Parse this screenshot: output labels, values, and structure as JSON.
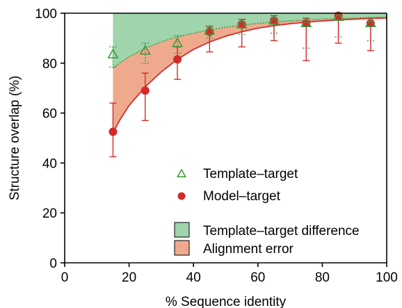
{
  "chart_data": {
    "type": "scatter",
    "title": "",
    "xlabel": "% Sequence identity",
    "ylabel": "Structure overlap (%)",
    "xlim": [
      0,
      100
    ],
    "ylim": [
      0,
      100
    ],
    "x_ticks": [
      "0",
      "20",
      "40",
      "60",
      "80",
      "100"
    ],
    "y_ticks": [
      "0",
      "20",
      "40",
      "60",
      "80",
      "100"
    ],
    "grid": false,
    "legend_position": "center-right",
    "series": [
      {
        "name": "Template–target",
        "marker": "open-triangle",
        "color": "#3a9a3a",
        "line_style": "dotted",
        "points": [
          {
            "x": 15,
            "y": 83.5,
            "err_low": 5,
            "err_high": 3
          },
          {
            "x": 25,
            "y": 85,
            "err_low": 5,
            "err_high": 3
          },
          {
            "x": 35,
            "y": 88,
            "err_low": 4,
            "err_high": 3
          },
          {
            "x": 45,
            "y": 93,
            "err_low": 3,
            "err_high": 2
          },
          {
            "x": 55,
            "y": 95.5,
            "err_low": 4,
            "err_high": 2
          },
          {
            "x": 65,
            "y": 97,
            "err_low": 5,
            "err_high": 2
          },
          {
            "x": 75,
            "y": 96,
            "err_low": 10,
            "err_high": 2
          },
          {
            "x": 85,
            "y": 98.5,
            "err_low": 8,
            "err_high": 1
          },
          {
            "x": 95,
            "y": 96,
            "err_low": 7,
            "err_high": 2
          }
        ]
      },
      {
        "name": "Model–target",
        "marker": "filled-circle",
        "color": "#d42a2a",
        "line_style": "solid",
        "points": [
          {
            "x": 15,
            "y": 52.5,
            "err_low": 10,
            "err_high": 11.5
          },
          {
            "x": 25,
            "y": 69,
            "err_low": 12,
            "err_high": 7
          },
          {
            "x": 35,
            "y": 81.5,
            "err_low": 8,
            "err_high": 5
          },
          {
            "x": 45,
            "y": 92.5,
            "err_low": 8,
            "err_high": 2
          },
          {
            "x": 55,
            "y": 95.5,
            "err_low": 9,
            "err_high": 2
          },
          {
            "x": 65,
            "y": 97,
            "err_low": 8,
            "err_high": 2
          },
          {
            "x": 75,
            "y": 96,
            "err_low": 15,
            "err_high": 2
          },
          {
            "x": 85,
            "y": 99,
            "err_low": 11,
            "err_high": 1
          },
          {
            "x": 95,
            "y": 96,
            "err_low": 11,
            "err_high": 2
          }
        ]
      }
    ],
    "areas": [
      {
        "name": "Template–target difference",
        "color": "#9fd4ac",
        "border": "#2f8f45"
      },
      {
        "name": "Alignment error",
        "color": "#efaa8e",
        "border": "#d42a2a"
      }
    ],
    "curves": {
      "x": [
        15,
        17,
        20,
        25,
        30,
        35,
        40,
        45,
        50,
        55,
        60,
        65,
        70,
        75,
        80,
        85,
        90,
        95,
        100
      ],
      "template_fit": [
        78,
        80,
        82.5,
        86,
        88.5,
        90.5,
        92,
        93.3,
        94.4,
        95.2,
        95.9,
        96.5,
        96.9,
        97.3,
        97.6,
        97.9,
        98.1,
        98.3,
        98.4
      ],
      "model_fit": [
        52,
        57,
        63,
        70.5,
        76.5,
        81.5,
        85.5,
        88.5,
        90.8,
        92.6,
        94,
        95,
        95.8,
        96.4,
        96.9,
        97.3,
        97.6,
        97.9,
        98.1
      ]
    }
  }
}
